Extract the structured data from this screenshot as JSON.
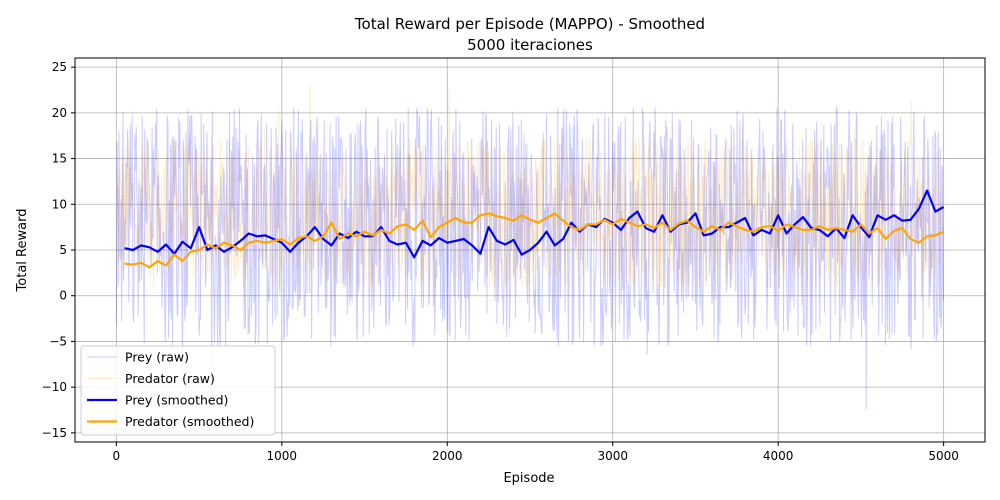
{
  "chart_data": {
    "type": "line",
    "title": "Total Reward per Episode (MAPPO) - Smoothed",
    "subtitle": "5000 iteraciones",
    "xlabel": "Episode",
    "ylabel": "Total Reward",
    "xlim": [
      -250,
      5250
    ],
    "ylim": [
      -16,
      26
    ],
    "xticks": [
      0,
      1000,
      2000,
      3000,
      4000,
      5000
    ],
    "yticks": [
      -15,
      -10,
      -5,
      0,
      5,
      10,
      15,
      20,
      25
    ],
    "grid": true,
    "legend_position": "lower-left",
    "raw_range": {
      "prey": {
        "typical_low": -5,
        "typical_high": 20,
        "min": -14,
        "max": 21
      },
      "predator": {
        "typical_low": 1,
        "typical_high": 17,
        "min": 1,
        "max": 24
      }
    },
    "series": [
      {
        "name": "Prey (raw)",
        "color": "#0000ff",
        "opacity": 0.2,
        "style": "raw"
      },
      {
        "name": "Predator (raw)",
        "color": "#ffa500",
        "opacity": 0.2,
        "style": "raw"
      },
      {
        "name": "Prey (smoothed)",
        "color": "#0000ff",
        "style": "smoothed",
        "x": [
          50,
          100,
          150,
          200,
          250,
          300,
          350,
          400,
          450,
          500,
          550,
          600,
          650,
          700,
          750,
          800,
          850,
          900,
          950,
          1000,
          1050,
          1100,
          1150,
          1200,
          1250,
          1300,
          1350,
          1400,
          1450,
          1500,
          1550,
          1600,
          1650,
          1700,
          1750,
          1800,
          1850,
          1900,
          1950,
          2000,
          2050,
          2100,
          2150,
          2200,
          2250,
          2300,
          2350,
          2400,
          2450,
          2500,
          2550,
          2600,
          2650,
          2700,
          2750,
          2800,
          2850,
          2900,
          2950,
          3000,
          3050,
          3100,
          3150,
          3200,
          3250,
          3300,
          3350,
          3400,
          3450,
          3500,
          3550,
          3600,
          3650,
          3700,
          3750,
          3800,
          3850,
          3900,
          3950,
          4000,
          4050,
          4100,
          4150,
          4200,
          4250,
          4300,
          4350,
          4400,
          4450,
          4500,
          4550,
          4600,
          4650,
          4700,
          4750,
          4800,
          4850,
          4900,
          4950,
          5000
        ],
        "y": [
          5.2,
          5.0,
          5.5,
          5.3,
          4.8,
          5.6,
          4.6,
          5.9,
          5.2,
          7.5,
          5.0,
          5.5,
          4.8,
          5.3,
          6.0,
          6.8,
          6.5,
          6.6,
          6.2,
          5.8,
          4.8,
          5.8,
          6.5,
          7.5,
          6.2,
          5.5,
          6.8,
          6.3,
          7.0,
          6.5,
          6.5,
          7.5,
          6.0,
          5.6,
          5.8,
          4.2,
          6.0,
          5.5,
          6.3,
          5.8,
          6.0,
          6.2,
          5.5,
          4.6,
          7.5,
          6.0,
          5.6,
          6.1,
          4.5,
          5.0,
          5.8,
          7.0,
          5.5,
          6.2,
          8.0,
          7.0,
          7.8,
          7.5,
          8.4,
          8.0,
          7.2,
          8.5,
          9.2,
          7.4,
          7.0,
          8.8,
          7.0,
          7.8,
          8.0,
          9.0,
          6.6,
          6.8,
          7.5,
          7.5,
          8.0,
          8.5,
          6.6,
          7.2,
          6.8,
          8.8,
          6.8,
          7.8,
          8.6,
          7.4,
          7.2,
          6.5,
          7.4,
          6.3,
          8.8,
          7.5,
          6.4,
          8.8,
          8.3,
          8.8,
          8.2,
          8.3,
          9.5,
          11.5,
          9.2,
          9.7
        ]
      },
      {
        "name": "Predator (smoothed)",
        "color": "#ffa500",
        "style": "smoothed",
        "x": [
          50,
          100,
          150,
          200,
          250,
          300,
          350,
          400,
          450,
          500,
          550,
          600,
          650,
          700,
          750,
          800,
          850,
          900,
          950,
          1000,
          1050,
          1100,
          1150,
          1200,
          1250,
          1300,
          1350,
          1400,
          1450,
          1500,
          1550,
          1600,
          1650,
          1700,
          1750,
          1800,
          1850,
          1900,
          1950,
          2000,
          2050,
          2100,
          2150,
          2200,
          2250,
          2300,
          2350,
          2400,
          2450,
          2500,
          2550,
          2600,
          2650,
          2700,
          2750,
          2800,
          2850,
          2900,
          2950,
          3000,
          3050,
          3100,
          3150,
          3200,
          3250,
          3300,
          3350,
          3400,
          3450,
          3500,
          3550,
          3600,
          3650,
          3700,
          3750,
          3800,
          3850,
          3900,
          3950,
          4000,
          4050,
          4100,
          4150,
          4200,
          4250,
          4300,
          4350,
          4400,
          4450,
          4500,
          4550,
          4600,
          4650,
          4700,
          4750,
          4800,
          4850,
          4900,
          4950,
          5000
        ],
        "y": [
          3.5,
          3.4,
          3.6,
          3.1,
          3.8,
          3.3,
          4.5,
          3.8,
          4.8,
          5.0,
          5.6,
          5.2,
          5.8,
          5.5,
          5.0,
          5.8,
          6.0,
          5.8,
          6.0,
          6.2,
          5.6,
          6.3,
          6.5,
          6.0,
          6.5,
          8.0,
          6.2,
          6.8,
          6.5,
          7.0,
          6.6,
          7.2,
          6.8,
          7.6,
          7.8,
          7.2,
          8.2,
          6.4,
          7.5,
          8.0,
          8.5,
          8.0,
          8.0,
          8.8,
          9.0,
          8.7,
          8.5,
          8.2,
          8.8,
          8.3,
          8.0,
          8.5,
          9.0,
          8.2,
          7.5,
          7.2,
          7.8,
          7.8,
          8.3,
          7.8,
          8.4,
          8.0,
          7.6,
          7.8,
          7.4,
          8.0,
          7.2,
          7.9,
          8.2,
          7.5,
          7.0,
          7.6,
          7.2,
          8.0,
          7.6,
          7.2,
          7.0,
          7.5,
          7.6,
          7.1,
          7.8,
          7.5,
          7.2,
          7.2,
          7.6,
          7.2,
          7.4,
          7.2,
          7.0,
          7.8,
          6.8,
          7.4,
          6.2,
          7.1,
          7.4,
          6.2,
          5.8,
          6.5,
          6.6,
          7.0
        ]
      }
    ]
  }
}
